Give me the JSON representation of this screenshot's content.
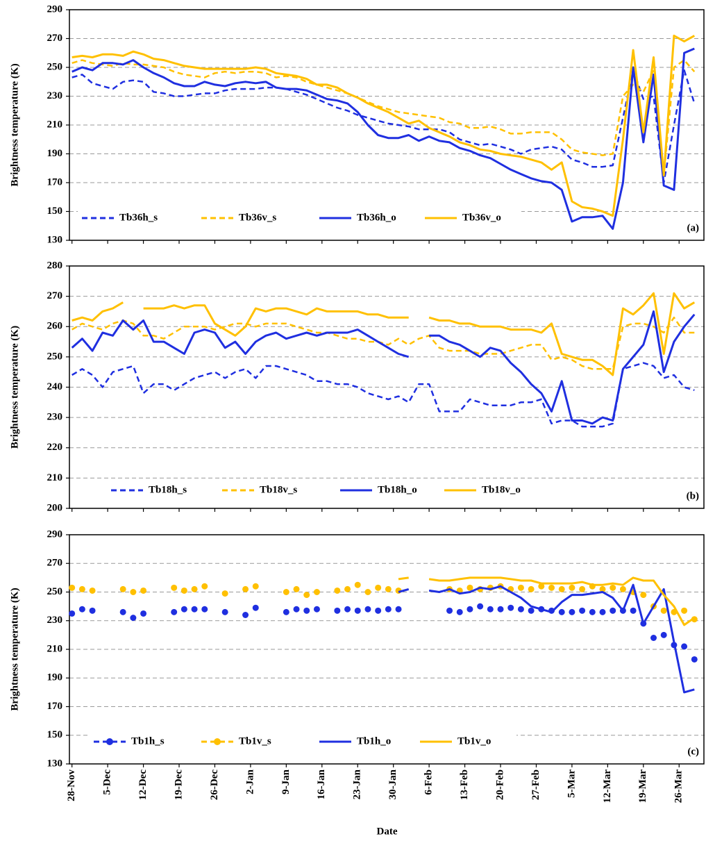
{
  "chart_data": [
    {
      "type": "line",
      "panel_label": "(a)",
      "y_label": "Brightness temperature (K)",
      "x": [
        0,
        2,
        4,
        6,
        8,
        10,
        12,
        14,
        16,
        18,
        20,
        22,
        24,
        26,
        28,
        30,
        32,
        34,
        36,
        38,
        40,
        42,
        44,
        46,
        48,
        50,
        52,
        54,
        56,
        58,
        60,
        62,
        64,
        66,
        68,
        70,
        72,
        74,
        76,
        78,
        80,
        82,
        84,
        86,
        88,
        90,
        92,
        94,
        96,
        98,
        100,
        102,
        104,
        106,
        108,
        110,
        112,
        114,
        116,
        118,
        120,
        122
      ],
      "xlim": [
        -0.5,
        124
      ],
      "ylim": [
        130,
        290
      ],
      "yticks": [
        130,
        150,
        170,
        190,
        210,
        230,
        250,
        270,
        290
      ],
      "grid": true,
      "series": [
        {
          "name": "Tb36h_s",
          "color": "#1f2fe0",
          "style": "dashed",
          "values": [
            243,
            245,
            239,
            237,
            235,
            240,
            241,
            240,
            233,
            232,
            230,
            230,
            231,
            232,
            232,
            234,
            235,
            235,
            235,
            236,
            236,
            235,
            233,
            231,
            228,
            225,
            222,
            220,
            217,
            215,
            213,
            211,
            210,
            209,
            207,
            207,
            207,
            205,
            200,
            198,
            196,
            197,
            195,
            193,
            190,
            193,
            194,
            195,
            193,
            186,
            184,
            181,
            181,
            182,
            215,
            248,
            228,
            230,
            170,
            210,
            248,
            225
          ]
        },
        {
          "name": "Tb36v_s",
          "color": "#ffc000",
          "style": "dashed",
          "values": [
            253,
            255,
            253,
            252,
            251,
            253,
            252,
            252,
            251,
            250,
            247,
            245,
            244,
            243,
            246,
            247,
            246,
            247,
            247,
            246,
            243,
            244,
            243,
            240,
            238,
            236,
            234,
            232,
            229,
            226,
            223,
            221,
            219,
            218,
            217,
            216,
            215,
            212,
            211,
            208,
            208,
            209,
            207,
            204,
            204,
            205,
            205,
            205,
            200,
            193,
            191,
            190,
            189,
            190,
            230,
            238,
            233,
            248,
            175,
            250,
            255,
            247
          ]
        },
        {
          "name": "Tb36h_o",
          "color": "#1f2fe0",
          "style": "solid",
          "values": [
            247,
            250,
            248,
            253,
            253,
            252,
            255,
            250,
            246,
            243,
            239,
            237,
            237,
            240,
            238,
            237,
            239,
            240,
            239,
            240,
            236,
            235,
            235,
            234,
            231,
            228,
            227,
            225,
            219,
            210,
            203,
            201,
            201,
            203,
            199,
            202,
            199,
            198,
            194,
            192,
            189,
            187,
            183,
            179,
            176,
            173,
            171,
            170,
            165,
            143,
            146,
            146,
            147,
            138,
            170,
            250,
            198,
            245,
            168,
            165,
            260,
            263
          ]
        },
        {
          "name": "Tb36v_o",
          "color": "#ffc000",
          "style": "solid",
          "values": [
            257,
            258,
            257,
            259,
            259,
            258,
            261,
            259,
            256,
            255,
            253,
            251,
            250,
            249,
            249,
            249,
            249,
            249,
            250,
            249,
            246,
            245,
            244,
            242,
            238,
            238,
            236,
            232,
            229,
            225,
            222,
            219,
            215,
            211,
            213,
            208,
            205,
            202,
            198,
            196,
            193,
            192,
            190,
            189,
            188,
            186,
            184,
            179,
            184,
            157,
            153,
            152,
            150,
            147,
            200,
            262,
            205,
            257,
            175,
            272,
            268,
            272
          ]
        }
      ]
    },
    {
      "type": "line",
      "panel_label": "(b)",
      "y_label": "Brightness temperature (K)",
      "x": [
        0,
        2,
        4,
        6,
        8,
        10,
        12,
        14,
        16,
        18,
        20,
        22,
        24,
        26,
        28,
        30,
        32,
        34,
        36,
        38,
        40,
        42,
        44,
        46,
        48,
        50,
        52,
        54,
        56,
        58,
        60,
        62,
        64,
        66,
        68,
        70,
        72,
        74,
        76,
        78,
        80,
        82,
        84,
        86,
        88,
        90,
        92,
        94,
        96,
        98,
        100,
        102,
        104,
        106,
        108,
        110,
        112,
        114,
        116,
        118,
        120,
        122
      ],
      "xlim": [
        -0.5,
        124
      ],
      "ylim": [
        200,
        280
      ],
      "yticks": [
        200,
        210,
        220,
        230,
        240,
        250,
        260,
        270,
        280
      ],
      "grid": true,
      "series": [
        {
          "name": "Tb18h_s",
          "color": "#1f2fe0",
          "style": "dashed",
          "values": [
            244,
            246,
            244,
            240,
            245,
            246,
            247,
            238,
            241,
            241,
            239,
            241,
            243,
            244,
            245,
            243,
            245,
            246,
            243,
            247,
            247,
            246,
            245,
            244,
            242,
            242,
            241,
            241,
            240,
            238,
            237,
            236,
            237,
            235,
            241,
            241,
            232,
            232,
            232,
            236,
            235,
            234,
            234,
            234,
            235,
            235,
            236,
            228,
            229,
            229,
            227,
            227,
            227,
            228,
            246,
            247,
            248,
            247,
            243,
            244,
            240,
            239
          ]
        },
        {
          "name": "Tb18v_s",
          "color": "#ffc000",
          "style": "dashed",
          "values": [
            259,
            261,
            260,
            259,
            261,
            262,
            261,
            257,
            257,
            256,
            258,
            260,
            260,
            260,
            259,
            260,
            261,
            261,
            260,
            261,
            261,
            261,
            260,
            259,
            258,
            258,
            257,
            256,
            256,
            255,
            255,
            254,
            256,
            254,
            256,
            257,
            253,
            252,
            252,
            252,
            251,
            251,
            251,
            252,
            253,
            254,
            254,
            249,
            250,
            249,
            247,
            246,
            246,
            246,
            260,
            261,
            261,
            260,
            258,
            263,
            258,
            258
          ]
        },
        {
          "name": "Tb18h_o",
          "color": "#1f2fe0",
          "style": "solid",
          "values": [
            253,
            256,
            252,
            258,
            257,
            262,
            259,
            262,
            255,
            255,
            253,
            251,
            258,
            259,
            258,
            253,
            255,
            251,
            255,
            257,
            258,
            256,
            257,
            258,
            257,
            258,
            258,
            258,
            259,
            257,
            255,
            253,
            251,
            250,
            null,
            257,
            257,
            255,
            254,
            252,
            250,
            253,
            252,
            248,
            245,
            241,
            238,
            232,
            242,
            229,
            229,
            228,
            230,
            229,
            246,
            250,
            254,
            265,
            245,
            255,
            260,
            264
          ]
        },
        {
          "name": "Tb18v_o",
          "color": "#ffc000",
          "style": "solid",
          "values": [
            262,
            263,
            262,
            265,
            266,
            268,
            null,
            266,
            266,
            266,
            267,
            266,
            267,
            267,
            261,
            259,
            257,
            260,
            266,
            265,
            266,
            266,
            265,
            264,
            266,
            265,
            265,
            265,
            265,
            264,
            264,
            263,
            263,
            263,
            null,
            263,
            262,
            262,
            261,
            261,
            260,
            260,
            260,
            259,
            259,
            259,
            258,
            261,
            251,
            250,
            249,
            249,
            247,
            244,
            266,
            264,
            267,
            271,
            251,
            271,
            266,
            268
          ]
        }
      ]
    },
    {
      "type": "line",
      "panel_label": "(c)",
      "y_label": "Brightness temperature (K)",
      "x_label": "Date",
      "x": [
        0,
        2,
        4,
        6,
        8,
        10,
        12,
        14,
        16,
        18,
        20,
        22,
        24,
        26,
        28,
        30,
        32,
        34,
        36,
        38,
        40,
        42,
        44,
        46,
        48,
        50,
        52,
        54,
        56,
        58,
        60,
        62,
        64,
        66,
        68,
        70,
        72,
        74,
        76,
        78,
        80,
        82,
        84,
        86,
        88,
        90,
        92,
        94,
        96,
        98,
        100,
        102,
        104,
        106,
        108,
        110,
        112,
        114,
        116,
        118,
        120,
        122
      ],
      "xlim": [
        -0.5,
        124
      ],
      "ylim": [
        130,
        290
      ],
      "yticks": [
        130,
        150,
        170,
        190,
        210,
        230,
        250,
        270,
        290
      ],
      "grid": true,
      "xticks": [
        {
          "value": 0,
          "label": "28-Nov"
        },
        {
          "value": 7,
          "label": "5-Dec"
        },
        {
          "value": 14,
          "label": "12-Dec"
        },
        {
          "value": 21,
          "label": "19-Dec"
        },
        {
          "value": 28,
          "label": "26-Dec"
        },
        {
          "value": 35,
          "label": "2-Jan"
        },
        {
          "value": 42,
          "label": "9-Jan"
        },
        {
          "value": 49,
          "label": "16-Jan"
        },
        {
          "value": 56,
          "label": "23-Jan"
        },
        {
          "value": 63,
          "label": "30-Jan"
        },
        {
          "value": 70,
          "label": "6-Feb"
        },
        {
          "value": 77,
          "label": "13-Feb"
        },
        {
          "value": 84,
          "label": "20-Feb"
        },
        {
          "value": 91,
          "label": "27-Feb"
        },
        {
          "value": 98,
          "label": "5-Mar"
        },
        {
          "value": 105,
          "label": "12-Mar"
        },
        {
          "value": 112,
          "label": "19-Mar"
        },
        {
          "value": 119,
          "label": "26-Mar"
        }
      ],
      "series": [
        {
          "name": "Tb1h_s",
          "color": "#1f2fe0",
          "style": "markers",
          "values": [
            235,
            238,
            237,
            null,
            null,
            236,
            232,
            235,
            null,
            null,
            236,
            238,
            238,
            238,
            null,
            236,
            null,
            234,
            239,
            null,
            null,
            236,
            238,
            237,
            238,
            null,
            237,
            238,
            237,
            238,
            237,
            238,
            238,
            null,
            null,
            null,
            null,
            237,
            236,
            238,
            240,
            238,
            238,
            239,
            238,
            237,
            238,
            237,
            236,
            236,
            237,
            236,
            236,
            237,
            237,
            237,
            228,
            218,
            220,
            213,
            212,
            203
          ]
        },
        {
          "name": "Tb1v_s",
          "color": "#ffc000",
          "style": "markers",
          "values": [
            253,
            252,
            251,
            null,
            null,
            252,
            250,
            251,
            null,
            null,
            253,
            251,
            252,
            254,
            null,
            249,
            null,
            252,
            254,
            null,
            null,
            250,
            252,
            248,
            250,
            null,
            251,
            252,
            255,
            250,
            253,
            252,
            251,
            null,
            null,
            null,
            null,
            252,
            251,
            253,
            252,
            253,
            254,
            252,
            253,
            252,
            254,
            253,
            252,
            253,
            252,
            254,
            252,
            253,
            252,
            250,
            248,
            240,
            237,
            236,
            237,
            231
          ]
        },
        {
          "name": "Tb1h_o",
          "color": "#1f2fe0",
          "style": "solid",
          "values": [
            null,
            null,
            null,
            null,
            null,
            null,
            null,
            null,
            null,
            null,
            null,
            null,
            null,
            null,
            null,
            null,
            null,
            null,
            null,
            null,
            null,
            null,
            null,
            null,
            null,
            null,
            null,
            null,
            null,
            null,
            null,
            null,
            250,
            252,
            null,
            251,
            250,
            252,
            249,
            250,
            253,
            252,
            254,
            250,
            246,
            240,
            238,
            236,
            243,
            248,
            248,
            249,
            250,
            246,
            237,
            255,
            228,
            240,
            252,
            215,
            180,
            182
          ]
        },
        {
          "name": "Tb1v_o",
          "color": "#ffc000",
          "style": "solid",
          "values": [
            null,
            null,
            null,
            null,
            null,
            null,
            null,
            null,
            null,
            null,
            null,
            null,
            null,
            null,
            null,
            null,
            null,
            null,
            null,
            null,
            null,
            null,
            null,
            null,
            null,
            null,
            null,
            null,
            null,
            null,
            null,
            null,
            259,
            260,
            null,
            259,
            258,
            258,
            259,
            260,
            260,
            260,
            260,
            259,
            258,
            258,
            256,
            256,
            256,
            256,
            257,
            255,
            255,
            256,
            255,
            260,
            258,
            258,
            248,
            240,
            227,
            232
          ]
        }
      ]
    }
  ]
}
